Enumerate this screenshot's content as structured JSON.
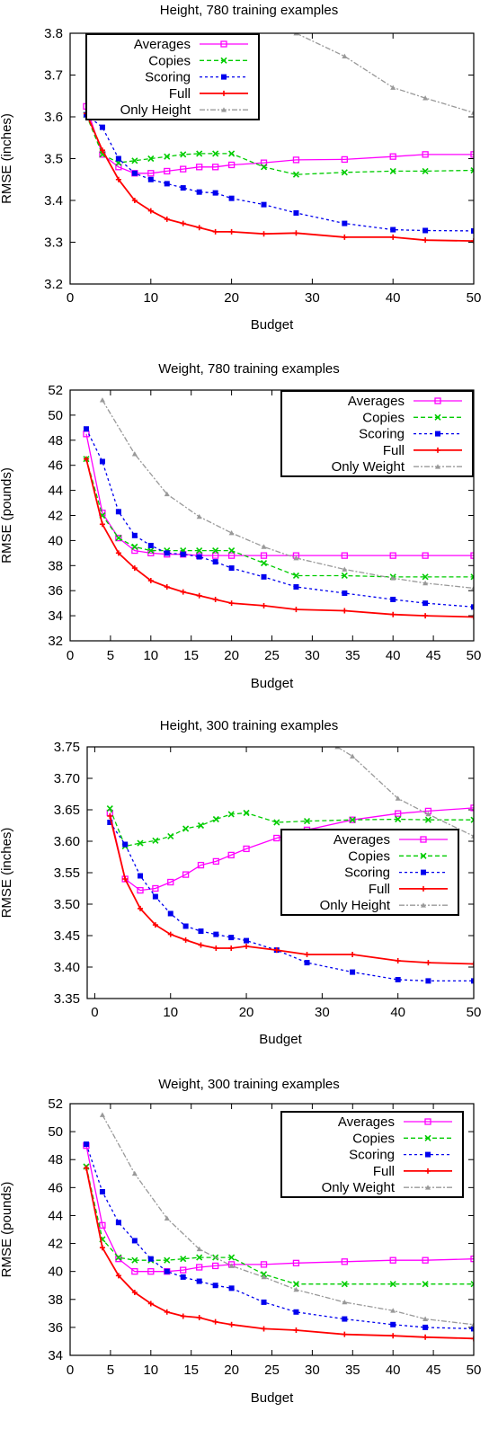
{
  "chart_data": [
    {
      "type": "line",
      "title": "Height, 780 training examples",
      "xlabel": "Budget",
      "ylabel": "RMSE (inches)",
      "xlim": [
        0,
        50
      ],
      "ylim": [
        3.2,
        3.8
      ],
      "xticks": [
        0,
        10,
        20,
        30,
        40,
        50
      ],
      "yticks": [
        3.2,
        3.3,
        3.4,
        3.5,
        3.6,
        3.7,
        3.8
      ],
      "ytick_decimals": 1,
      "legend_position": "top-left",
      "series": [
        {
          "name": "Averages",
          "color": "#ff00ff",
          "dash": "",
          "marker": "square",
          "x": [
            2,
            4,
            6,
            8,
            10,
            12,
            14,
            16,
            18,
            20,
            24,
            28,
            34,
            40,
            44,
            50
          ],
          "y": [
            3.625,
            3.51,
            3.48,
            3.465,
            3.465,
            3.47,
            3.475,
            3.48,
            3.48,
            3.485,
            3.49,
            3.497,
            3.498,
            3.505,
            3.51,
            3.51
          ]
        },
        {
          "name": "Copies",
          "color": "#00cc00",
          "dash": "5,3",
          "marker": "x",
          "x": [
            2,
            4,
            6,
            8,
            10,
            12,
            14,
            16,
            18,
            20,
            24,
            28,
            34,
            40,
            44,
            50
          ],
          "y": [
            3.605,
            3.51,
            3.49,
            3.495,
            3.5,
            3.505,
            3.51,
            3.512,
            3.512,
            3.512,
            3.48,
            3.462,
            3.467,
            3.47,
            3.47,
            3.472
          ]
        },
        {
          "name": "Scoring",
          "color": "#0000ee",
          "dash": "3,3",
          "marker": "filled-square",
          "x": [
            2,
            4,
            6,
            8,
            10,
            12,
            14,
            16,
            18,
            20,
            24,
            28,
            34,
            40,
            44,
            50
          ],
          "y": [
            3.605,
            3.575,
            3.5,
            3.465,
            3.45,
            3.44,
            3.43,
            3.42,
            3.418,
            3.405,
            3.39,
            3.37,
            3.345,
            3.33,
            3.328,
            3.327
          ]
        },
        {
          "name": "Full",
          "color": "#ff0000",
          "dash": "",
          "marker": "plus",
          "x": [
            2,
            4,
            6,
            8,
            10,
            12,
            14,
            16,
            18,
            20,
            24,
            28,
            34,
            40,
            44,
            50
          ],
          "y": [
            3.608,
            3.52,
            3.45,
            3.4,
            3.375,
            3.355,
            3.345,
            3.335,
            3.325,
            3.325,
            3.32,
            3.322,
            3.312,
            3.312,
            3.305,
            3.303
          ]
        },
        {
          "name": "Only Height",
          "color": "#999999",
          "dash": "6,2,2,2",
          "marker": "triangle",
          "x": [
            28,
            34,
            40,
            44,
            50
          ],
          "y": [
            3.8,
            3.745,
            3.67,
            3.645,
            3.61
          ]
        }
      ]
    },
    {
      "type": "line",
      "title": "Weight, 780 training examples",
      "xlabel": "Budget",
      "ylabel": "RMSE (pounds)",
      "xlim": [
        0,
        50
      ],
      "ylim": [
        32,
        52
      ],
      "xticks": [
        0,
        5,
        10,
        15,
        20,
        25,
        30,
        35,
        40,
        45,
        50
      ],
      "yticks": [
        32,
        34,
        36,
        38,
        40,
        42,
        44,
        46,
        48,
        50,
        52
      ],
      "ytick_decimals": 0,
      "legend_position": "top-right",
      "series": [
        {
          "name": "Averages",
          "color": "#ff00ff",
          "dash": "",
          "marker": "square",
          "x": [
            2,
            4,
            6,
            8,
            10,
            12,
            14,
            16,
            18,
            20,
            24,
            28,
            34,
            40,
            44,
            50
          ],
          "y": [
            48.5,
            42.2,
            40.2,
            39.2,
            39.0,
            38.9,
            38.9,
            38.8,
            38.8,
            38.8,
            38.8,
            38.8,
            38.8,
            38.8,
            38.8,
            38.8
          ]
        },
        {
          "name": "Copies",
          "color": "#00cc00",
          "dash": "5,3",
          "marker": "x",
          "x": [
            2,
            4,
            6,
            8,
            10,
            12,
            14,
            16,
            18,
            20,
            24,
            28,
            34,
            40,
            44,
            50
          ],
          "y": [
            46.5,
            42.0,
            40.2,
            39.5,
            39.2,
            39.2,
            39.2,
            39.2,
            39.2,
            39.2,
            38.2,
            37.2,
            37.2,
            37.1,
            37.1,
            37.1
          ]
        },
        {
          "name": "Scoring",
          "color": "#0000ee",
          "dash": "3,3",
          "marker": "filled-square",
          "x": [
            2,
            4,
            6,
            8,
            10,
            12,
            14,
            16,
            18,
            20,
            24,
            28,
            34,
            40,
            44,
            50
          ],
          "y": [
            48.9,
            46.3,
            42.3,
            40.4,
            39.6,
            39.0,
            38.9,
            38.7,
            38.3,
            37.8,
            37.1,
            36.3,
            35.8,
            35.3,
            35.0,
            34.7
          ]
        },
        {
          "name": "Full",
          "color": "#ff0000",
          "dash": "",
          "marker": "plus",
          "x": [
            2,
            4,
            6,
            8,
            10,
            12,
            14,
            16,
            18,
            20,
            24,
            28,
            34,
            40,
            44,
            50
          ],
          "y": [
            46.5,
            41.3,
            39.0,
            37.8,
            36.8,
            36.3,
            35.9,
            35.6,
            35.3,
            35.0,
            34.8,
            34.5,
            34.4,
            34.1,
            34.0,
            33.9
          ]
        },
        {
          "name": "Only Weight",
          "color": "#999999",
          "dash": "6,2,2,2",
          "marker": "triangle",
          "x": [
            4,
            8,
            12,
            16,
            20,
            24,
            28,
            34,
            40,
            44,
            50
          ],
          "y": [
            51.2,
            46.9,
            43.7,
            41.9,
            40.6,
            39.5,
            38.6,
            37.7,
            37.0,
            36.6,
            36.2
          ]
        }
      ]
    },
    {
      "type": "line",
      "title": "Height, 300 training examples",
      "xlabel": "Budget",
      "ylabel": "RMSE (inches)",
      "xlim": [
        -1,
        50
      ],
      "ylim": [
        3.35,
        3.75
      ],
      "xticks": [
        0,
        10,
        20,
        30,
        40,
        50
      ],
      "yticks": [
        3.35,
        3.4,
        3.45,
        3.5,
        3.55,
        3.6,
        3.65,
        3.7,
        3.75
      ],
      "ytick_decimals": 2,
      "legend_position": "bottom-right",
      "series": [
        {
          "name": "Averages",
          "color": "#ff00ff",
          "dash": "",
          "marker": "square",
          "x": [
            2,
            4,
            6,
            8,
            10,
            12,
            14,
            16,
            18,
            20,
            24,
            28,
            34,
            40,
            44,
            50
          ],
          "y": [
            3.645,
            3.54,
            3.522,
            3.525,
            3.535,
            3.547,
            3.562,
            3.568,
            3.578,
            3.588,
            3.605,
            3.618,
            3.634,
            3.644,
            3.648,
            3.653
          ]
        },
        {
          "name": "Copies",
          "color": "#00cc00",
          "dash": "5,3",
          "marker": "x",
          "x": [
            2,
            4,
            6,
            8,
            10,
            12,
            14,
            16,
            18,
            20,
            24,
            28,
            34,
            40,
            44,
            50
          ],
          "y": [
            3.652,
            3.592,
            3.597,
            3.601,
            3.608,
            3.62,
            3.625,
            3.635,
            3.643,
            3.645,
            3.63,
            3.632,
            3.634,
            3.635,
            3.634,
            3.634
          ]
        },
        {
          "name": "Scoring",
          "color": "#0000ee",
          "dash": "3,3",
          "marker": "filled-square",
          "x": [
            2,
            4,
            6,
            8,
            10,
            12,
            14,
            16,
            18,
            20,
            24,
            28,
            34,
            40,
            44,
            50
          ],
          "y": [
            3.63,
            3.595,
            3.545,
            3.512,
            3.485,
            3.465,
            3.457,
            3.452,
            3.447,
            3.442,
            3.427,
            3.407,
            3.392,
            3.38,
            3.378,
            3.378
          ]
        },
        {
          "name": "Full",
          "color": "#ff0000",
          "dash": "",
          "marker": "plus",
          "x": [
            2,
            4,
            6,
            8,
            10,
            12,
            14,
            16,
            18,
            20,
            24,
            28,
            34,
            40,
            44,
            50
          ],
          "y": [
            3.64,
            3.54,
            3.493,
            3.467,
            3.452,
            3.443,
            3.435,
            3.43,
            3.43,
            3.433,
            3.427,
            3.42,
            3.42,
            3.41,
            3.407,
            3.405
          ]
        },
        {
          "name": "Only Height",
          "color": "#999999",
          "dash": "6,2,2,2",
          "marker": "triangle",
          "x": [
            32,
            34,
            40,
            44,
            50
          ],
          "y": [
            3.75,
            3.735,
            3.668,
            3.643,
            3.608
          ]
        }
      ]
    },
    {
      "type": "line",
      "title": "Weight, 300 training examples",
      "xlabel": "Budget",
      "ylabel": "RMSE (pounds)",
      "xlim": [
        0,
        50
      ],
      "ylim": [
        34,
        52
      ],
      "xticks": [
        0,
        5,
        10,
        15,
        20,
        25,
        30,
        35,
        40,
        45,
        50
      ],
      "yticks": [
        34,
        36,
        38,
        40,
        42,
        44,
        46,
        48,
        50,
        52
      ],
      "ytick_decimals": 0,
      "legend_position": "top-right",
      "series": [
        {
          "name": "Averages",
          "color": "#ff00ff",
          "dash": "",
          "marker": "square",
          "x": [
            2,
            4,
            6,
            8,
            10,
            12,
            14,
            16,
            18,
            20,
            24,
            28,
            34,
            40,
            44,
            50
          ],
          "y": [
            49.0,
            43.3,
            40.9,
            40.0,
            40.0,
            40.0,
            40.1,
            40.3,
            40.4,
            40.5,
            40.5,
            40.6,
            40.7,
            40.8,
            40.8,
            40.9
          ]
        },
        {
          "name": "Copies",
          "color": "#00cc00",
          "dash": "5,3",
          "marker": "x",
          "x": [
            2,
            4,
            6,
            8,
            10,
            12,
            14,
            16,
            18,
            20,
            24,
            28,
            34,
            40,
            44,
            50
          ],
          "y": [
            47.5,
            42.3,
            41.0,
            40.8,
            40.8,
            40.8,
            40.9,
            41.0,
            41.0,
            41.0,
            39.8,
            39.1,
            39.1,
            39.1,
            39.1,
            39.1
          ]
        },
        {
          "name": "Scoring",
          "color": "#0000ee",
          "dash": "3,3",
          "marker": "filled-square",
          "x": [
            2,
            4,
            6,
            8,
            10,
            12,
            14,
            16,
            18,
            20,
            24,
            28,
            34,
            40,
            44,
            50
          ],
          "y": [
            49.1,
            45.7,
            43.5,
            42.2,
            40.9,
            40.0,
            39.6,
            39.3,
            39.0,
            38.8,
            37.8,
            37.1,
            36.6,
            36.2,
            36.0,
            35.9
          ]
        },
        {
          "name": "Full",
          "color": "#ff0000",
          "dash": "",
          "marker": "plus",
          "x": [
            2,
            4,
            6,
            8,
            10,
            12,
            14,
            16,
            18,
            20,
            24,
            28,
            34,
            40,
            44,
            50
          ],
          "y": [
            47.4,
            41.7,
            39.7,
            38.5,
            37.7,
            37.1,
            36.8,
            36.7,
            36.4,
            36.2,
            35.9,
            35.8,
            35.5,
            35.4,
            35.3,
            35.2
          ]
        },
        {
          "name": "Only Weight",
          "color": "#999999",
          "dash": "6,2,2,2",
          "marker": "triangle",
          "x": [
            4,
            8,
            12,
            16,
            20,
            24,
            28,
            34,
            40,
            44,
            50
          ],
          "y": [
            51.2,
            47.0,
            43.8,
            41.6,
            40.4,
            39.6,
            38.7,
            37.8,
            37.2,
            36.6,
            36.2
          ]
        }
      ]
    }
  ]
}
